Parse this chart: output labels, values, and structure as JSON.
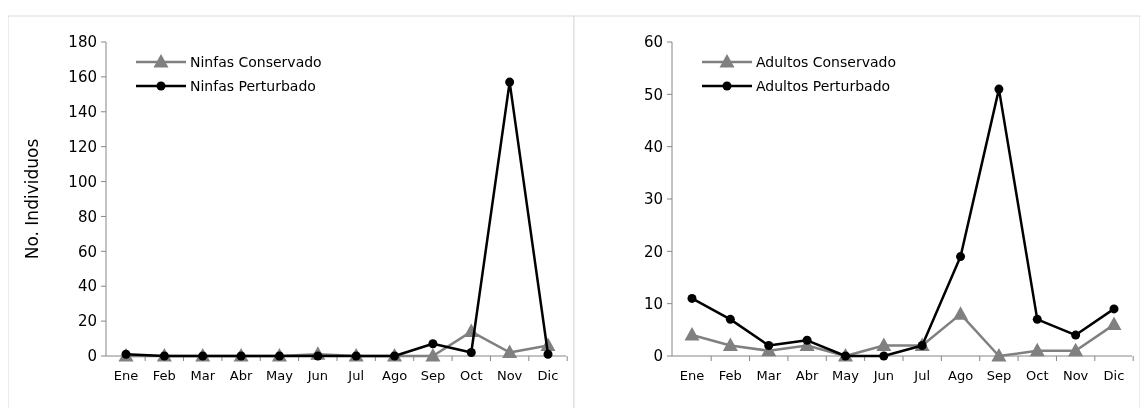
{
  "chart_data": [
    {
      "type": "line",
      "ylabel": "No. Individuos",
      "categories": [
        "Ene",
        "Feb",
        "Mar",
        "Abr",
        "May",
        "Jun",
        "Jul",
        "Ago",
        "Sep",
        "Oct",
        "Nov",
        "Dic"
      ],
      "ylim": [
        0,
        180
      ],
      "yticks": [
        0,
        20,
        40,
        60,
        80,
        100,
        120,
        140,
        160,
        180
      ],
      "grid": false,
      "legend": "top left",
      "series": [
        {
          "name": "Ninfas Conservado",
          "color": "#808080",
          "marker": "triangle",
          "values": [
            0,
            0,
            0,
            0,
            0,
            1,
            0,
            0,
            0,
            14,
            2,
            6
          ]
        },
        {
          "name": "Ninfas Perturbado",
          "color": "#000000",
          "marker": "circle",
          "values": [
            1,
            0,
            0,
            0,
            0,
            0,
            0,
            0,
            7,
            2,
            157,
            1
          ]
        }
      ]
    },
    {
      "type": "line",
      "categories": [
        "Ene",
        "Feb",
        "Mar",
        "Abr",
        "May",
        "Jun",
        "Jul",
        "Ago",
        "Sep",
        "Oct",
        "Nov",
        "Dic"
      ],
      "ylim": [
        0,
        60
      ],
      "yticks": [
        0,
        10,
        20,
        30,
        40,
        50,
        60
      ],
      "grid": false,
      "legend": "top left",
      "series": [
        {
          "name": "Adultos Conservado",
          "color": "#808080",
          "marker": "triangle",
          "values": [
            4,
            2,
            1,
            2,
            0,
            2,
            2,
            8,
            0,
            1,
            1,
            6
          ]
        },
        {
          "name": "Adultos Perturbado",
          "color": "#000000",
          "marker": "circle",
          "values": [
            11,
            7,
            2,
            3,
            0,
            0,
            2,
            19,
            51,
            7,
            4,
            9
          ]
        }
      ]
    }
  ]
}
